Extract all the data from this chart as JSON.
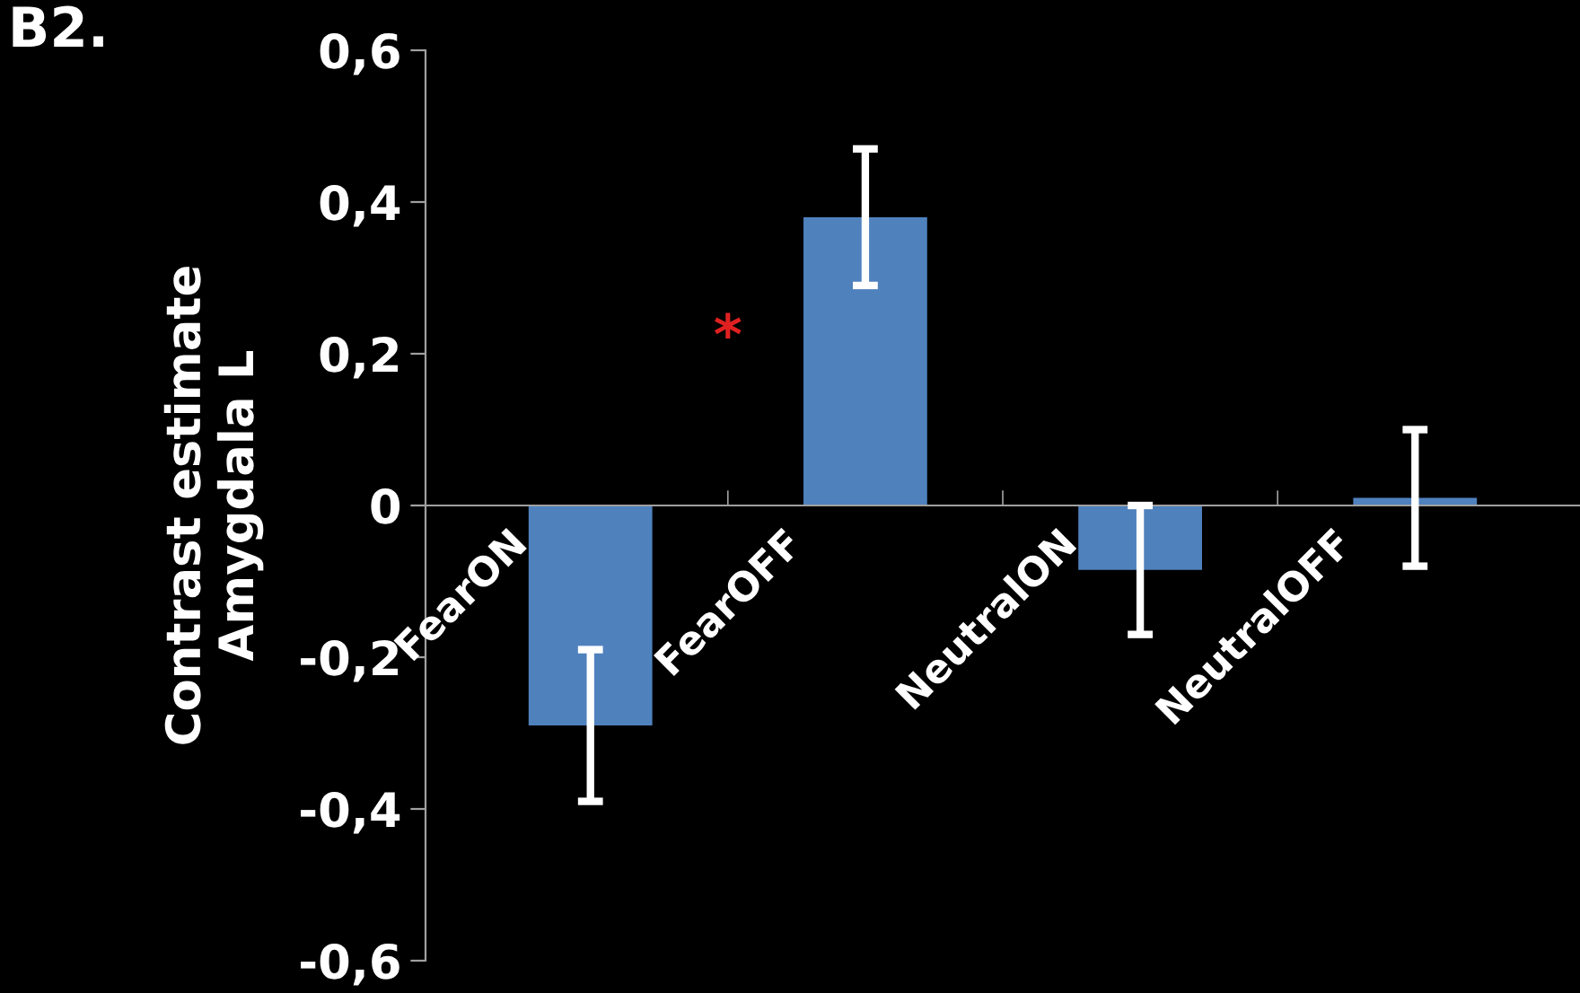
{
  "chart_data": {
    "type": "bar",
    "title": "B2.",
    "ylabel": "Contrast estimate\nAmygdala L",
    "categories": [
      "FearON",
      "FearOFF",
      "NeutralON",
      "NeutralOFF"
    ],
    "values": [
      -0.29,
      0.38,
      -0.085,
      0.01
    ],
    "errors": [
      0.1,
      0.09,
      0.085,
      0.09
    ],
    "color": "#4f81bd",
    "ylim": [
      -0.6,
      0.6
    ],
    "yticks": [
      {
        "value": -0.6,
        "label": "-0,6"
      },
      {
        "value": -0.4,
        "label": "-0,4"
      },
      {
        "value": -0.2,
        "label": "-0,2"
      },
      {
        "value": 0,
        "label": "0"
      },
      {
        "value": 0.2,
        "label": "0,2"
      },
      {
        "value": 0.4,
        "label": "0,4"
      },
      {
        "value": 0.6,
        "label": "0,6"
      }
    ],
    "annotations": [
      "*"
    ],
    "grid": false,
    "legend": false
  }
}
